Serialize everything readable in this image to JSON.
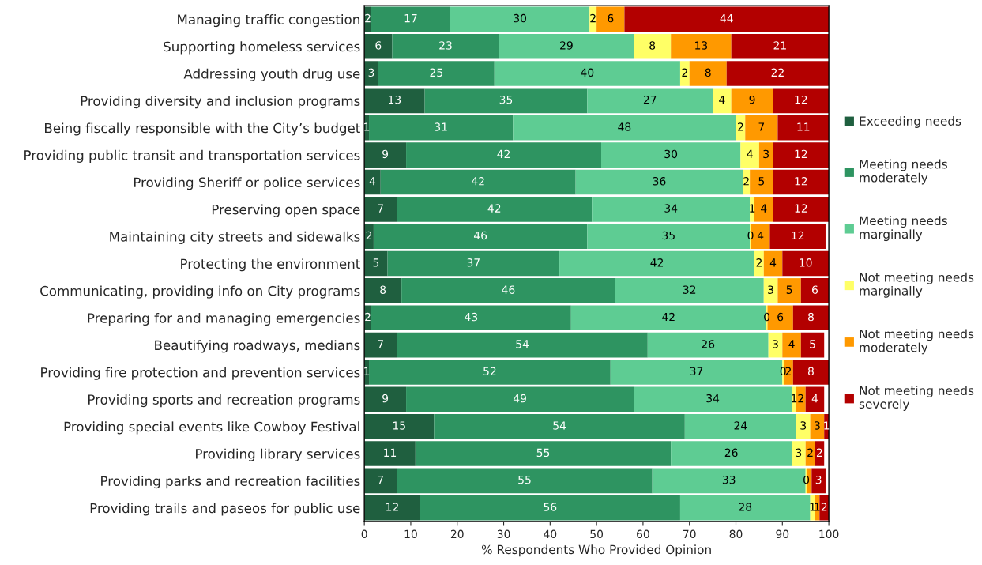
{
  "chart_data": {
    "type": "bar",
    "orientation": "horizontal",
    "stacked": true,
    "xlabel": "% Respondents Who Provided Opinion",
    "xlim": [
      0,
      100
    ],
    "xticks": [
      0,
      10,
      20,
      30,
      40,
      50,
      60,
      70,
      80,
      90,
      100
    ],
    "grid": false,
    "legend": "right",
    "categories": [
      "Managing traffic congestion",
      "Supporting homeless services",
      "Addressing youth drug use",
      "Providing diversity and inclusion programs",
      "Being fiscally responsible with the City’s budget",
      "Providing public transit and transportation services",
      "Providing Sheriff or police services",
      "Preserving open space",
      "Maintaining city streets and sidewalks",
      "Protecting the environment",
      "Communicating, providing info on City programs",
      "Preparing for and managing emergencies",
      "Beautifying roadways, medians",
      "Providing fire protection and prevention services",
      "Providing sports and recreation programs",
      "Providing special events like Cowboy Festival",
      "Providing library services",
      "Providing parks and recreation facilities",
      "Providing trails and paseos for public use"
    ],
    "series": [
      {
        "name": "Exceeding needs",
        "color": "#1f5f3f",
        "values": [
          1.5,
          6,
          3,
          13,
          1,
          9,
          3.5,
          7,
          2,
          5,
          8,
          1.5,
          7,
          1,
          9,
          15,
          11,
          7,
          12
        ],
        "value_labels": [
          "2",
          "6",
          "3",
          "13",
          "1",
          "9",
          "4",
          "7",
          "2",
          "5",
          "8",
          "2",
          "7",
          "1",
          "9",
          "15",
          "11",
          "7",
          "12"
        ]
      },
      {
        "name": "Meeting needs\nmoderately",
        "color": "#2e9461",
        "values": [
          17,
          23,
          25,
          35,
          31,
          42,
          42,
          42,
          46,
          37,
          46,
          43,
          54,
          52,
          49,
          54,
          55,
          55,
          56
        ]
      },
      {
        "name": "Meeting needs\nmarginally",
        "color": "#5ecc93",
        "values": [
          30,
          29,
          40,
          27,
          48,
          30,
          36,
          34,
          35,
          42,
          32,
          42,
          26,
          37,
          34,
          24,
          26,
          33,
          28
        ]
      },
      {
        "name": "Not meeting needs\nmarginally",
        "color": "#ffff66",
        "values": [
          1.5,
          8,
          2,
          4,
          2,
          4,
          1.5,
          1,
          0.3,
          2,
          3,
          0.3,
          3,
          0.3,
          1,
          3,
          3,
          0.3,
          1
        ],
        "value_labels": [
          "2",
          "8",
          "2",
          "4",
          "2",
          "4",
          "2",
          "1",
          "0",
          "2",
          "3",
          "0",
          "3",
          "0",
          "1",
          "3",
          "3",
          "0",
          "1"
        ]
      },
      {
        "name": "Not meeting needs\nmoderately",
        "color": "#ff9900",
        "values": [
          6,
          13,
          8,
          9,
          7,
          3,
          5,
          4,
          4,
          4,
          5,
          5.5,
          4,
          2,
          2,
          3,
          2,
          1,
          1
        ],
        "value_labels": [
          "6",
          "13",
          "8",
          "9",
          "7",
          "3",
          "5",
          "4",
          "4",
          "4",
          "5",
          "6",
          "4",
          "2",
          "2",
          "3",
          "2",
          null,
          "1"
        ]
      },
      {
        "name": "Not meeting needs\nseverely",
        "color": "#b30000",
        "values": [
          44,
          21,
          22,
          12,
          11,
          12,
          12,
          12,
          12,
          10,
          6,
          7.7,
          5,
          7.7,
          4,
          1,
          2,
          3,
          2
        ],
        "value_labels": [
          "44",
          "21",
          "22",
          "12",
          "11",
          "12",
          "12",
          "12",
          "12",
          "10",
          "6",
          "8",
          "5",
          "8",
          "4",
          "1",
          "2",
          "3",
          "2"
        ]
      }
    ],
    "data_labels": true
  }
}
